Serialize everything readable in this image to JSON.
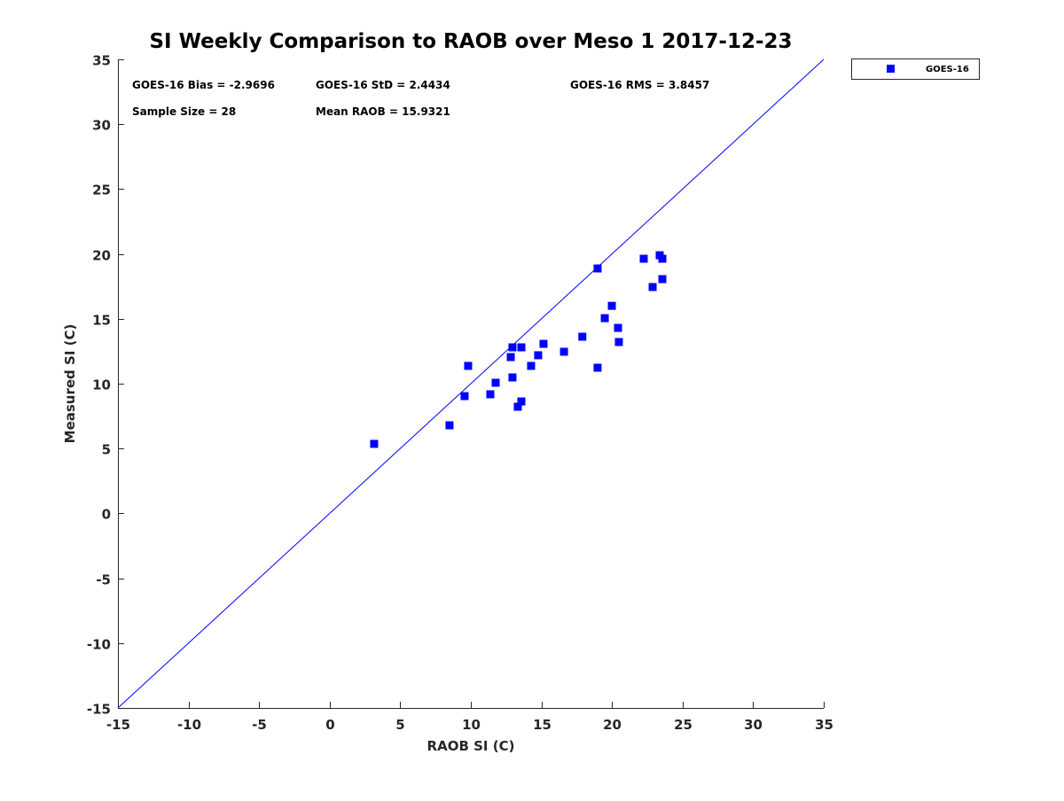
{
  "chart_data": {
    "type": "scatter",
    "title": "SI Weekly Comparison to RAOB over Meso 1 2017-12-23",
    "xlabel": "RAOB SI (C)",
    "ylabel": "Measured SI (C)",
    "xlim": [
      -15,
      35
    ],
    "ylim": [
      -15,
      35
    ],
    "xticks": [
      -15,
      -10,
      -5,
      0,
      5,
      10,
      15,
      20,
      25,
      30,
      35
    ],
    "yticks": [
      -15,
      -10,
      -5,
      0,
      5,
      10,
      15,
      20,
      25,
      30,
      35
    ],
    "grid": false,
    "legend": {
      "position": "outside-top-right",
      "entries": [
        "GOES-16"
      ]
    },
    "reference_line": {
      "label": "1:1",
      "from": [
        -15,
        -15
      ],
      "to": [
        35,
        35
      ],
      "color": "#0000ff"
    },
    "annotations": [
      "GOES-16 Bias = -2.9696",
      "GOES-16 StD = 2.4434",
      "GOES-16 RMS = 3.8457",
      "Sample Size = 28",
      "Mean RAOB = 15.9321"
    ],
    "series": [
      {
        "name": "GOES-16",
        "color": "#0000ff",
        "marker": "square",
        "points": [
          [
            3.15,
            5.36
          ],
          [
            8.49,
            6.79
          ],
          [
            9.56,
            9.04
          ],
          [
            9.81,
            11.37
          ],
          [
            11.38,
            9.18
          ],
          [
            11.76,
            10.07
          ],
          [
            12.83,
            12.05
          ],
          [
            12.95,
            12.8
          ],
          [
            12.95,
            10.48
          ],
          [
            13.33,
            8.22
          ],
          [
            13.58,
            8.63
          ],
          [
            13.58,
            12.8
          ],
          [
            14.27,
            11.37
          ],
          [
            14.77,
            12.19
          ],
          [
            15.15,
            13.07
          ],
          [
            16.6,
            12.46
          ],
          [
            17.9,
            13.62
          ],
          [
            18.98,
            18.88
          ],
          [
            18.98,
            11.23
          ],
          [
            19.49,
            15.05
          ],
          [
            19.99,
            16.0
          ],
          [
            20.43,
            14.3
          ],
          [
            20.49,
            13.21
          ],
          [
            22.25,
            19.63
          ],
          [
            22.88,
            17.45
          ],
          [
            23.38,
            19.9
          ],
          [
            23.57,
            19.63
          ],
          [
            23.57,
            18.06
          ]
        ]
      }
    ]
  }
}
